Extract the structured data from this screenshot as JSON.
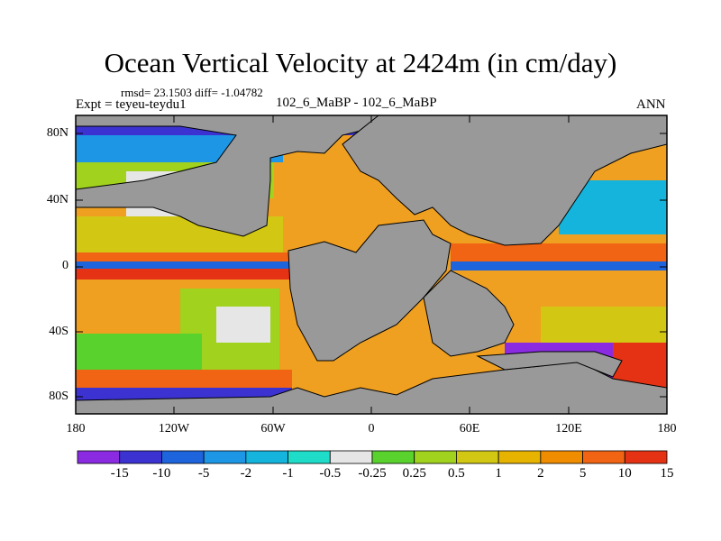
{
  "title": "Ocean Vertical Velocity at 2424m (in cm/day)",
  "stats": "rmsd= 23.1503  diff= -1.04782",
  "expt": "Expt = teyeu-teydu1",
  "center_label": "102_6_MaBP - 102_6_MaBP",
  "season": "ANN",
  "map": {
    "land_color": "#999999",
    "lat_ticks": [
      "80N",
      "40N",
      "0",
      "40S",
      "80S"
    ],
    "lon_ticks": [
      "180",
      "120W",
      "60W",
      "0",
      "60E",
      "120E",
      "180"
    ]
  },
  "colorbar": {
    "colors": [
      "#8a2be2",
      "#3c32d2",
      "#1e64dc",
      "#1e96e6",
      "#14b4dc",
      "#1edcc8",
      "#e6e6e6",
      "#5ad22d",
      "#a0d21e",
      "#d2c814",
      "#e6b400",
      "#f08c00",
      "#f06414",
      "#e63214"
    ],
    "labels": [
      "-15",
      "-10",
      "-5",
      "-2",
      "-1",
      "-0.5",
      "-0.25",
      "0.25",
      "0.5",
      "1",
      "2",
      "5",
      "10",
      "15"
    ]
  }
}
